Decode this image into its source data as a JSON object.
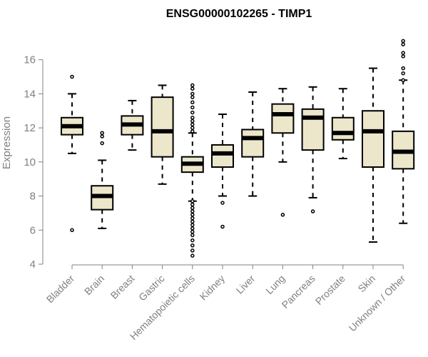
{
  "chart_data": {
    "type": "box",
    "title": "ENSG00000102265 - TIMP1",
    "xlabel": "",
    "ylabel": "Expression",
    "ylim": [
      4,
      17.2
    ],
    "yticks": [
      4,
      6,
      8,
      10,
      12,
      14,
      16
    ],
    "categories": [
      "Bladder",
      "Brain",
      "Breast",
      "Gastric",
      "Hematopoietic cells",
      "Kidney",
      "Liver",
      "Lung",
      "Pancreas",
      "Prostate",
      "Skin",
      "Unknown / Other"
    ],
    "boxes": [
      {
        "label": "Bladder",
        "min": 10.5,
        "q1": 11.6,
        "median": 12.1,
        "q3": 12.6,
        "max": 14.0,
        "outliers": [
          15.0,
          6.0
        ]
      },
      {
        "label": "Brain",
        "min": 6.1,
        "q1": 7.2,
        "median": 8.0,
        "q3": 8.6,
        "max": 10.1,
        "outliers": [
          11.7,
          11.5,
          11.1
        ]
      },
      {
        "label": "Breast",
        "min": 10.7,
        "q1": 11.6,
        "median": 12.2,
        "q3": 12.7,
        "max": 13.6,
        "outliers": []
      },
      {
        "label": "Gastric",
        "min": 8.7,
        "q1": 10.3,
        "median": 11.8,
        "q3": 13.8,
        "max": 14.5,
        "outliers": []
      },
      {
        "label": "Hematopoietic cells",
        "min": 7.7,
        "q1": 9.4,
        "median": 9.9,
        "q3": 10.3,
        "max": 11.7,
        "outliers": [
          14.5,
          14.3,
          14.0,
          13.8,
          13.5,
          13.2,
          12.9,
          12.6,
          12.4,
          12.2,
          12.0,
          11.8,
          7.7,
          7.5,
          7.3,
          7.1,
          6.9,
          6.7,
          6.5,
          6.3,
          6.1,
          5.9,
          5.7,
          5.4,
          5.1,
          4.8,
          4.5
        ]
      },
      {
        "label": "Kidney",
        "min": 8.0,
        "q1": 9.7,
        "median": 10.5,
        "q3": 11.0,
        "max": 12.8,
        "outliers": [
          7.6,
          6.2
        ]
      },
      {
        "label": "Liver",
        "min": 8.0,
        "q1": 10.3,
        "median": 11.4,
        "q3": 11.9,
        "max": 14.1,
        "outliers": []
      },
      {
        "label": "Lung",
        "min": 10.0,
        "q1": 11.7,
        "median": 12.8,
        "q3": 13.4,
        "max": 14.3,
        "outliers": [
          6.9
        ]
      },
      {
        "label": "Pancreas",
        "min": 7.9,
        "q1": 10.7,
        "median": 12.6,
        "q3": 13.1,
        "max": 14.4,
        "outliers": [
          7.1
        ]
      },
      {
        "label": "Prostate",
        "min": 10.2,
        "q1": 11.3,
        "median": 11.7,
        "q3": 12.6,
        "max": 14.3,
        "outliers": []
      },
      {
        "label": "Skin",
        "min": 5.3,
        "q1": 9.7,
        "median": 11.8,
        "q3": 13.0,
        "max": 15.5,
        "outliers": []
      },
      {
        "label": "Unknown / Other",
        "min": 6.4,
        "q1": 9.6,
        "median": 10.6,
        "q3": 11.8,
        "max": 14.8,
        "outliers": [
          17.1,
          16.9,
          16.4,
          16.2,
          15.5,
          15.2,
          14.8
        ]
      }
    ]
  },
  "colors": {
    "box_fill": "#ece6cb",
    "stroke": "#000000",
    "axis": "#808080",
    "text": "#808080",
    "title": "#000000"
  }
}
